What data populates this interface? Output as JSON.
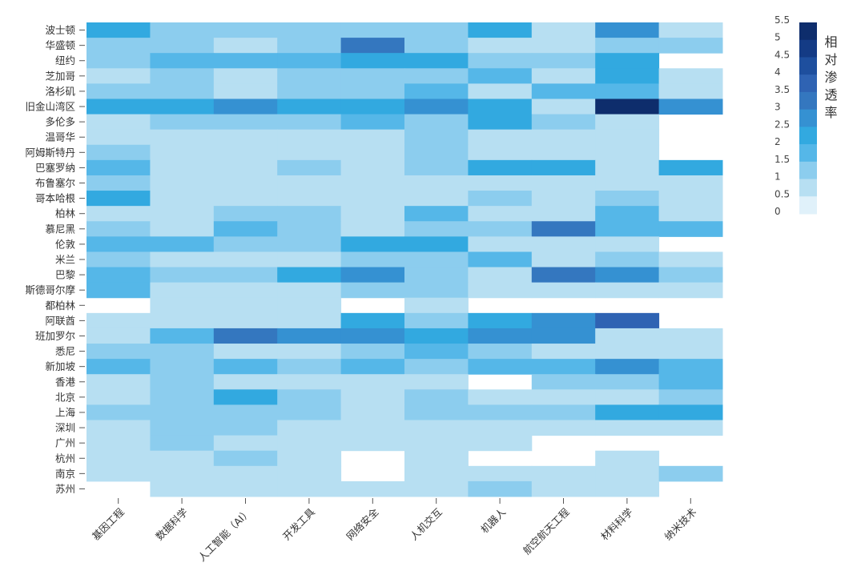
{
  "chart_data": {
    "type": "heatmap",
    "title": "",
    "legend_title": "相对渗透率",
    "colorbar_ticks": [
      "5.5",
      "5",
      "4.5",
      "4",
      "3.5",
      "3",
      "2.5",
      "2",
      "1.5",
      "1",
      "0.5",
      "0"
    ],
    "colorbar_range": [
      0,
      5.5
    ],
    "colors": [
      "#e0f1fa",
      "#b7dff2",
      "#8ccdee",
      "#55b7e8",
      "#32a9e0",
      "#3591d2",
      "#3477bf",
      "#2f63b3",
      "#1e4f9e",
      "#143b85",
      "#0e2d6c"
    ],
    "rows": [
      "波士顿",
      "华盛顿",
      "纽约",
      "芝加哥",
      "洛杉矶",
      "旧金山湾区",
      "多伦多",
      "温哥华",
      "阿姆斯特丹",
      "巴塞罗纳",
      "布鲁塞尔",
      "哥本哈根",
      "柏林",
      "慕尼黑",
      "伦敦",
      "米兰",
      "巴黎",
      "斯德哥尔摩",
      "都柏林",
      "阿联酋",
      "班加罗尔",
      "悉尼",
      "新加坡",
      "香港",
      "北京",
      "上海",
      "深圳",
      "广州",
      "杭州",
      "南京",
      "苏州"
    ],
    "columns": [
      "基因工程",
      "数据科学",
      "人工智能（AI）",
      "开发工具",
      "网络安全",
      "人机交互",
      "机器人",
      "航空航天工程",
      "材料科学",
      "纳米技术"
    ],
    "values": [
      [
        2.0,
        1.0,
        1.0,
        1.0,
        1.0,
        1.0,
        2.0,
        0.3,
        3.0,
        0.7
      ],
      [
        1.0,
        1.0,
        0.7,
        1.0,
        3.5,
        1.0,
        0.3,
        0.7,
        1.0,
        1.0
      ],
      [
        1.0,
        1.5,
        1.5,
        1.5,
        2.0,
        2.0,
        1.0,
        1.0,
        2.0,
        null
      ],
      [
        0.7,
        1.0,
        0.7,
        1.0,
        1.0,
        1.0,
        1.5,
        0.7,
        2.0,
        0.3
      ],
      [
        1.0,
        1.0,
        0.7,
        1.0,
        1.0,
        1.5,
        0.7,
        1.5,
        1.5,
        0.3
      ],
      [
        2.0,
        2.0,
        3.0,
        2.0,
        2.0,
        3.0,
        2.0,
        0.7,
        5.5,
        3.0
      ],
      [
        0.7,
        1.0,
        1.0,
        1.0,
        1.5,
        1.0,
        2.0,
        1.0,
        0.7,
        null
      ],
      [
        0.7,
        0.7,
        0.7,
        0.7,
        0.7,
        1.0,
        0.7,
        0.7,
        0.7,
        null
      ],
      [
        1.0,
        0.7,
        0.7,
        0.7,
        0.7,
        1.0,
        0.7,
        0.7,
        0.3,
        null
      ],
      [
        1.5,
        0.7,
        0.7,
        1.0,
        0.7,
        1.0,
        2.0,
        2.0,
        0.7,
        2.0
      ],
      [
        1.0,
        0.7,
        0.7,
        0.7,
        0.7,
        0.7,
        0.7,
        0.7,
        0.7,
        0.7
      ],
      [
        2.0,
        0.7,
        0.7,
        0.7,
        0.7,
        0.7,
        1.0,
        0.3,
        1.0,
        0.7
      ],
      [
        0.7,
        0.7,
        1.0,
        1.0,
        0.7,
        1.5,
        0.7,
        0.7,
        1.5,
        0.7
      ],
      [
        1.0,
        0.7,
        1.5,
        1.0,
        0.7,
        1.0,
        1.0,
        3.5,
        1.5,
        1.5
      ],
      [
        1.5,
        1.5,
        1.0,
        1.0,
        2.0,
        2.0,
        0.7,
        0.7,
        0.3,
        null
      ],
      [
        1.0,
        0.7,
        0.7,
        0.7,
        1.0,
        1.0,
        1.5,
        0.7,
        1.0,
        0.7
      ],
      [
        1.5,
        1.0,
        1.0,
        2.0,
        3.0,
        1.0,
        0.7,
        3.5,
        3.0,
        1.0
      ],
      [
        1.5,
        0.7,
        0.7,
        0.7,
        1.0,
        1.0,
        0.3,
        0.7,
        0.7,
        0.7
      ],
      [
        null,
        0.3,
        0.3,
        0.3,
        null,
        0.3,
        null,
        null,
        null,
        null
      ],
      [
        0.7,
        0.7,
        0.7,
        0.7,
        2.0,
        1.0,
        2.0,
        3.0,
        4.0,
        null
      ],
      [
        0.7,
        1.5,
        3.5,
        3.0,
        3.0,
        2.0,
        3.0,
        3.0,
        0.7,
        0.7
      ],
      [
        1.0,
        1.0,
        0.7,
        0.7,
        1.0,
        1.5,
        1.0,
        0.7,
        0.3,
        0.7
      ],
      [
        1.5,
        1.0,
        1.5,
        1.0,
        1.5,
        1.0,
        1.5,
        1.5,
        3.0,
        1.5
      ],
      [
        0.7,
        1.0,
        0.7,
        0.7,
        0.7,
        0.7,
        null,
        1.0,
        1.0,
        1.5
      ],
      [
        0.7,
        1.0,
        2.0,
        1.0,
        0.7,
        1.0,
        0.7,
        0.3,
        0.7,
        1.0
      ],
      [
        1.0,
        1.0,
        1.0,
        1.0,
        0.3,
        1.0,
        1.0,
        1.0,
        2.0,
        2.0
      ],
      [
        0.3,
        1.0,
        1.0,
        0.7,
        0.3,
        0.7,
        0.3,
        0.3,
        0.3,
        0.7
      ],
      [
        0.3,
        1.0,
        0.7,
        0.7,
        0.3,
        0.3,
        0.3,
        null,
        null,
        null
      ],
      [
        0.3,
        0.7,
        1.0,
        0.7,
        null,
        0.3,
        null,
        null,
        0.3,
        null
      ],
      [
        0.3,
        0.7,
        0.7,
        0.7,
        null,
        0.3,
        0.7,
        0.3,
        0.3,
        1.0
      ],
      [
        null,
        0.7,
        0.3,
        0.3,
        0.3,
        0.3,
        1.0,
        0.7,
        0.3,
        null
      ]
    ]
  }
}
